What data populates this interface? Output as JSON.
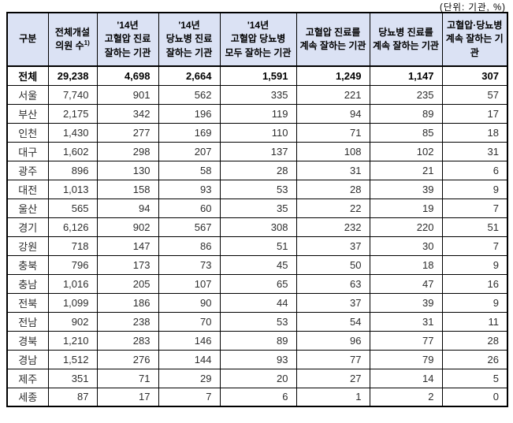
{
  "unit_note": "(단위: 기관, %)",
  "table": {
    "columns": [
      {
        "label": "구분"
      },
      {
        "label": "전체개설\n의원 수",
        "sup": "1)"
      },
      {
        "label": "'14년\n고혈압 진료\n잘하는 기관"
      },
      {
        "label": "'14년\n당뇨병 진료\n잘하는 기관"
      },
      {
        "label": "'14년\n고혈압 당뇨병\n모두 잘하는 기관"
      },
      {
        "label": "고혈압 진료를\n계속 잘하는 기관"
      },
      {
        "label": "당뇨병 진료를\n계속 잘하는 기관"
      },
      {
        "label": "고혈압·당뇨병\n계속 잘하는 기관"
      }
    ],
    "rows": [
      {
        "label": "전체",
        "total": true,
        "values": [
          "29,238",
          "4,698",
          "2,664",
          "1,591",
          "1,249",
          "1,147",
          "307"
        ]
      },
      {
        "label": "서울",
        "total": false,
        "values": [
          "7,740",
          "901",
          "562",
          "335",
          "221",
          "235",
          "57"
        ]
      },
      {
        "label": "부산",
        "total": false,
        "values": [
          "2,175",
          "342",
          "196",
          "119",
          "94",
          "89",
          "17"
        ]
      },
      {
        "label": "인천",
        "total": false,
        "values": [
          "1,430",
          "277",
          "169",
          "110",
          "71",
          "85",
          "18"
        ]
      },
      {
        "label": "대구",
        "total": false,
        "values": [
          "1,602",
          "298",
          "207",
          "137",
          "108",
          "102",
          "31"
        ]
      },
      {
        "label": "광주",
        "total": false,
        "values": [
          "896",
          "130",
          "58",
          "28",
          "31",
          "21",
          "6"
        ]
      },
      {
        "label": "대전",
        "total": false,
        "values": [
          "1,013",
          "158",
          "93",
          "53",
          "28",
          "39",
          "9"
        ]
      },
      {
        "label": "울산",
        "total": false,
        "values": [
          "565",
          "94",
          "60",
          "35",
          "22",
          "19",
          "7"
        ]
      },
      {
        "label": "경기",
        "total": false,
        "values": [
          "6,126",
          "902",
          "567",
          "308",
          "232",
          "220",
          "51"
        ]
      },
      {
        "label": "강원",
        "total": false,
        "values": [
          "718",
          "147",
          "86",
          "51",
          "37",
          "30",
          "7"
        ]
      },
      {
        "label": "충북",
        "total": false,
        "values": [
          "796",
          "173",
          "73",
          "45",
          "50",
          "18",
          "9"
        ]
      },
      {
        "label": "충남",
        "total": false,
        "values": [
          "1,016",
          "205",
          "107",
          "65",
          "63",
          "47",
          "16"
        ]
      },
      {
        "label": "전북",
        "total": false,
        "values": [
          "1,099",
          "186",
          "90",
          "44",
          "37",
          "39",
          "9"
        ]
      },
      {
        "label": "전남",
        "total": false,
        "values": [
          "902",
          "238",
          "70",
          "53",
          "54",
          "31",
          "11"
        ]
      },
      {
        "label": "경북",
        "total": false,
        "values": [
          "1,210",
          "283",
          "146",
          "89",
          "96",
          "77",
          "28"
        ]
      },
      {
        "label": "경남",
        "total": false,
        "values": [
          "1,512",
          "276",
          "144",
          "93",
          "77",
          "79",
          "26"
        ]
      },
      {
        "label": "제주",
        "total": false,
        "values": [
          "351",
          "71",
          "29",
          "20",
          "27",
          "14",
          "5"
        ]
      },
      {
        "label": "세종",
        "total": false,
        "values": [
          "87",
          "17",
          "7",
          "6",
          "1",
          "2",
          "0"
        ]
      }
    ]
  }
}
